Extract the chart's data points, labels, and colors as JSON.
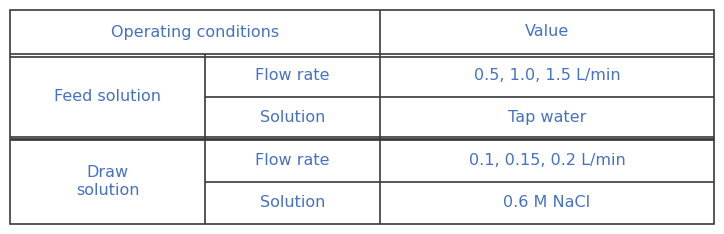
{
  "title_col1": "Operating conditions",
  "title_col2": "Value",
  "groups": [
    {
      "label": "Feed solution",
      "rows": [
        {
          "sub_label": "Flow rate",
          "value": "0.5, 1.0, 1.5 L/min"
        },
        {
          "sub_label": "Solution",
          "value": "Tap water"
        }
      ]
    },
    {
      "label": "Draw\nsolution",
      "rows": [
        {
          "sub_label": "Flow rate",
          "value": "0.1, 0.15, 0.2 L/min"
        },
        {
          "sub_label": "Solution",
          "value": "0.6 M NaCl"
        }
      ]
    }
  ],
  "text_color": "#4472C4",
  "border_color": "#3A3A3A",
  "bg_color": "#FFFFFF",
  "font_size": 11.5,
  "col_split": 0.385,
  "sub_col_split": 0.215
}
